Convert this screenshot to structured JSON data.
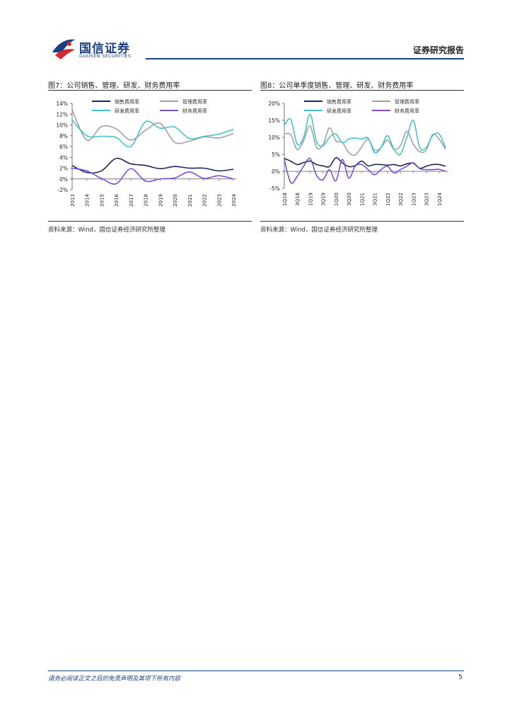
{
  "header": {
    "logo_cn": "国信证券",
    "logo_en": "GUOSEN SECURITIES",
    "report_type": "证券研究报告"
  },
  "colors": {
    "navy": "#1b2a55",
    "grey": "#9ea3a8",
    "teal": "#45c3cc",
    "purple": "#7b4fd6",
    "brand": "#1c3f83",
    "logo_red": "#d42a2f"
  },
  "figures": [
    {
      "title": "图7：公司销售、管理、研发、财务费用率",
      "source": "资料来源：Wind，国信证券经济研究所整理",
      "chart_data": {
        "type": "line",
        "title": "公司销售、管理、研发、财务费用率",
        "unit": "%",
        "categories": [
          "2013",
          "2014",
          "2015",
          "2016",
          "2017",
          "2018",
          "2019",
          "2020",
          "2021",
          "2022",
          "2023",
          "2024"
        ],
        "ylim": [
          -2,
          14
        ],
        "yticks": [
          "-2%",
          "0%",
          "2%",
          "4%",
          "6%",
          "8%",
          "10%",
          "12%",
          "14%"
        ],
        "series": [
          {
            "name": "销售费用率",
            "color": "navy",
            "values": [
              2.5,
              1.2,
              1.5,
              3.8,
              2.8,
              2.5,
              1.9,
              2.3,
              2.0,
              2.0,
              1.5,
              1.8
            ]
          },
          {
            "name": "管理费用率",
            "color": "grey",
            "values": [
              12.8,
              7.2,
              9.7,
              9.3,
              7.2,
              9.0,
              10.3,
              6.8,
              7.0,
              7.8,
              7.6,
              8.4
            ]
          },
          {
            "name": "研发费用率",
            "color": "teal",
            "values": [
              10.9,
              8.0,
              7.9,
              7.7,
              6.0,
              10.6,
              9.4,
              9.6,
              7.5,
              7.9,
              8.3,
              9.2
            ]
          },
          {
            "name": "财务费用率",
            "color": "purple",
            "values": [
              2.0,
              1.5,
              0.1,
              -0.9,
              1.9,
              -0.4,
              0.0,
              0.2,
              1.3,
              0.1,
              0.6,
              0.0
            ]
          }
        ]
      }
    },
    {
      "title": "图8：公司单季度销售、管理、研发、财务费用率",
      "source": "资料来源：Wind，国信证券经济研究所整理",
      "chart_data": {
        "type": "line",
        "title": "公司单季度销售、管理、研发、财务费用率",
        "unit": "%",
        "categories": [
          "1Q18",
          "2Q18",
          "3Q18",
          "4Q18",
          "1Q19",
          "2Q19",
          "3Q19",
          "4Q19",
          "1Q20",
          "2Q20",
          "3Q20",
          "4Q20",
          "1Q21",
          "2Q21",
          "3Q21",
          "4Q21",
          "1Q22",
          "2Q22",
          "3Q22",
          "4Q22",
          "1Q23",
          "2Q23",
          "3Q23",
          "4Q23",
          "1Q24",
          "2Q24"
        ],
        "xticks": [
          "1Q18",
          "3Q18",
          "1Q19",
          "3Q19",
          "1Q20",
          "3Q20",
          "1Q21",
          "3Q21",
          "1Q22",
          "3Q22",
          "1Q23",
          "3Q23",
          "1Q24"
        ],
        "ylim": [
          -5,
          20
        ],
        "yticks": [
          "-5%",
          "0%",
          "5%",
          "10%",
          "15%",
          "20%"
        ],
        "series": [
          {
            "name": "销售费用率",
            "color": "navy",
            "values": [
              3.8,
              3.0,
              2.0,
              2.6,
              3.0,
              2.0,
              1.6,
              1.4,
              4.0,
              2.5,
              1.4,
              1.7,
              3.0,
              1.6,
              2.0,
              2.0,
              1.8,
              2.0,
              1.6,
              2.2,
              2.4,
              0.9,
              1.5,
              2.0,
              2.0,
              1.5
            ]
          },
          {
            "name": "管理费用率",
            "color": "grey",
            "values": [
              11.0,
              10.8,
              6.4,
              9.0,
              13.4,
              7.0,
              7.8,
              12.8,
              9.0,
              8.5,
              5.5,
              4.8,
              7.2,
              9.5,
              6.2,
              7.0,
              9.2,
              6.5,
              7.5,
              11.8,
              8.0,
              5.8,
              6.2,
              10.8,
              9.5,
              6.5
            ]
          },
          {
            "name": "研发费用率",
            "color": "teal",
            "values": [
              13.5,
              15.3,
              8.0,
              10.0,
              16.8,
              8.8,
              7.5,
              10.0,
              11.0,
              8.5,
              9.5,
              9.8,
              9.5,
              9.8,
              5.5,
              7.0,
              10.5,
              6.5,
              5.0,
              10.0,
              15.0,
              7.0,
              7.0,
              10.5,
              11.0,
              7.0
            ]
          },
          {
            "name": "财务费用率",
            "color": "purple",
            "values": [
              3.5,
              -3.3,
              -1.5,
              1.5,
              3.8,
              -1.2,
              -2.5,
              0.5,
              -2.8,
              3.5,
              -2.0,
              1.5,
              2.0,
              0.5,
              -1.0,
              0.5,
              1.5,
              -0.5,
              0.5,
              1.5,
              2.5,
              0.8,
              0.5,
              0.5,
              0.6,
              0.0
            ]
          }
        ]
      }
    }
  ],
  "footer": {
    "disclaimer": "请务必阅读正文之后的免责声明及其项下所有内容",
    "page": "5"
  }
}
